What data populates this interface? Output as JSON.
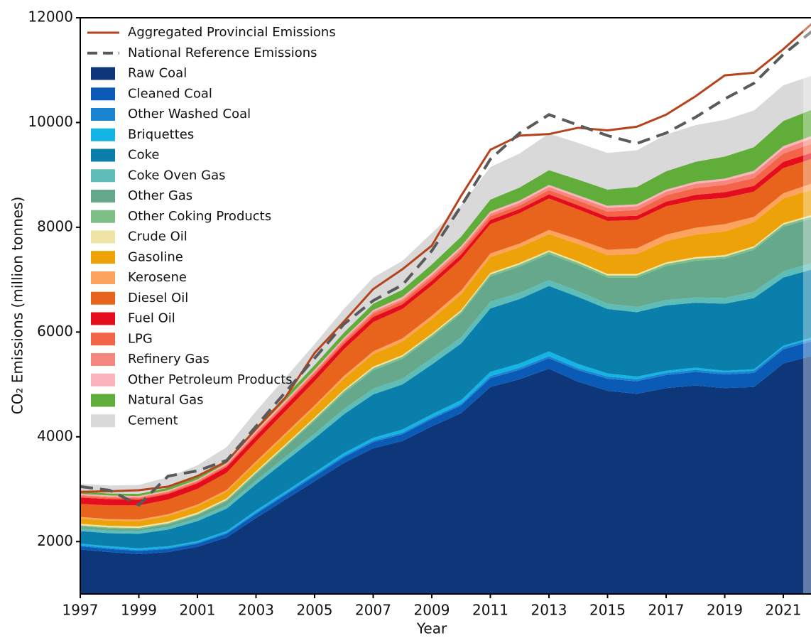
{
  "chart_data": {
    "type": "stacked_area",
    "x_label": "Year",
    "y_label": "CO₂ Emissions (million tonnes)",
    "x": [
      1997,
      1998,
      1999,
      2000,
      2001,
      2002,
      2003,
      2004,
      2005,
      2006,
      2007,
      2008,
      2009,
      2010,
      2011,
      2012,
      2013,
      2014,
      2015,
      2016,
      2017,
      2018,
      2019,
      2020,
      2021,
      2022
    ],
    "xlim": [
      1997,
      2022
    ],
    "xticks": [
      1997,
      1999,
      2001,
      2003,
      2005,
      2007,
      2009,
      2011,
      2013,
      2015,
      2017,
      2019,
      2021
    ],
    "ylim": [
      1000,
      12000
    ],
    "yticks": [
      2000,
      4000,
      6000,
      8000,
      10000,
      12000
    ],
    "lines": [
      {
        "name": "Aggregated Provincial Emissions",
        "color": "#b5431b",
        "dashed": false,
        "values": [
          2950,
          2960,
          2980,
          3050,
          3250,
          3530,
          4150,
          4750,
          5600,
          6200,
          6820,
          7200,
          7650,
          8600,
          9480,
          9750,
          9780,
          9900,
          9850,
          9920,
          10150,
          10500,
          10900,
          10950,
          11400,
          11900
        ]
      },
      {
        "name": "National Reference Emissions",
        "color": "#5a5a5a",
        "dashed": true,
        "values": [
          3050,
          2980,
          2700,
          3250,
          3350,
          3550,
          4200,
          4850,
          5500,
          6150,
          6600,
          6900,
          7550,
          8400,
          9300,
          9800,
          10150,
          9950,
          9750,
          9600,
          9800,
          10100,
          10450,
          10750,
          11300,
          11750
        ]
      }
    ],
    "series": [
      {
        "name": "Raw Coal",
        "color": "#0d3778",
        "values": [
          1850,
          1800,
          1760,
          1800,
          1900,
          2080,
          2450,
          2800,
          3150,
          3500,
          3780,
          3920,
          4200,
          4450,
          4950,
          5100,
          5300,
          5050,
          4880,
          4820,
          4930,
          4980,
          4930,
          4950,
          5400,
          5550
        ]
      },
      {
        "name": "Cleaned Coal",
        "color": "#0a5bb5",
        "values": [
          60,
          60,
          60,
          60,
          60,
          70,
          80,
          90,
          100,
          110,
          120,
          130,
          140,
          150,
          170,
          180,
          200,
          220,
          230,
          240,
          250,
          260,
          260,
          270,
          270,
          280
        ]
      },
      {
        "name": "Other Washed Coal",
        "color": "#1a84d0",
        "values": [
          20,
          20,
          20,
          20,
          20,
          20,
          25,
          25,
          30,
          30,
          30,
          30,
          30,
          30,
          40,
          40,
          40,
          40,
          40,
          40,
          40,
          40,
          40,
          40,
          40,
          40
        ]
      },
      {
        "name": "Briquettes",
        "color": "#13b4e6",
        "values": [
          30,
          30,
          30,
          30,
          30,
          30,
          40,
          40,
          40,
          50,
          50,
          60,
          60,
          70,
          80,
          80,
          90,
          80,
          60,
          50,
          40,
          40,
          30,
          30,
          30,
          30
        ]
      },
      {
        "name": "Coke",
        "color": "#0a7fab",
        "values": [
          240,
          250,
          280,
          320,
          380,
          430,
          500,
          580,
          650,
          740,
          830,
          860,
          950,
          1080,
          1210,
          1230,
          1250,
          1280,
          1230,
          1230,
          1250,
          1240,
          1280,
          1360,
          1300,
          1300
        ]
      },
      {
        "name": "Coke Oven Gas",
        "color": "#5fbdb8",
        "values": [
          50,
          50,
          50,
          50,
          55,
          60,
          70,
          80,
          90,
          100,
          110,
          110,
          120,
          120,
          130,
          120,
          110,
          110,
          100,
          100,
          100,
          100,
          110,
          120,
          120,
          120
        ]
      },
      {
        "name": "Other Gas",
        "color": "#66a88c",
        "values": [
          40,
          40,
          40,
          50,
          60,
          80,
          120,
          180,
          250,
          300,
          350,
          380,
          400,
          450,
          480,
          500,
          500,
          500,
          500,
          560,
          650,
          700,
          750,
          800,
          850,
          850
        ]
      },
      {
        "name": "Other Coking Products",
        "color": "#7dbf87",
        "values": [
          20,
          20,
          20,
          20,
          20,
          25,
          30,
          30,
          30,
          40,
          40,
          40,
          40,
          40,
          40,
          40,
          40,
          40,
          40,
          40,
          40,
          40,
          40,
          40,
          40,
          40
        ]
      },
      {
        "name": "Crude Oil",
        "color": "#efe3a6",
        "values": [
          30,
          30,
          30,
          30,
          30,
          30,
          30,
          30,
          30,
          30,
          30,
          30,
          30,
          30,
          30,
          30,
          30,
          30,
          30,
          30,
          30,
          30,
          30,
          30,
          30,
          30
        ]
      },
      {
        "name": "Gasoline",
        "color": "#eda20a",
        "values": [
          100,
          100,
          100,
          110,
          120,
          130,
          150,
          170,
          190,
          210,
          240,
          260,
          280,
          300,
          300,
          300,
          310,
          330,
          360,
          380,
          410,
          430,
          450,
          460,
          470,
          480
        ]
      },
      {
        "name": "Kerosene",
        "color": "#fca35f",
        "values": [
          30,
          30,
          30,
          30,
          30,
          30,
          35,
          40,
          40,
          50,
          50,
          60,
          60,
          70,
          70,
          70,
          80,
          90,
          100,
          110,
          120,
          130,
          140,
          100,
          100,
          120
        ]
      },
      {
        "name": "Diesel Oil",
        "color": "#e8641c",
        "values": [
          250,
          260,
          270,
          280,
          300,
          330,
          380,
          420,
          460,
          510,
          560,
          560,
          580,
          600,
          560,
          580,
          600,
          570,
          550,
          540,
          540,
          530,
          500,
          480,
          480,
          470
        ]
      },
      {
        "name": "Fuel Oil",
        "color": "#e30d1d",
        "values": [
          120,
          120,
          110,
          110,
          110,
          110,
          110,
          110,
          110,
          100,
          100,
          90,
          90,
          90,
          80,
          80,
          80,
          80,
          80,
          80,
          90,
          100,
          110,
          110,
          120,
          120
        ]
      },
      {
        "name": "LPG",
        "color": "#f46449",
        "values": [
          30,
          30,
          30,
          30,
          30,
          30,
          40,
          40,
          50,
          50,
          60,
          60,
          60,
          70,
          70,
          70,
          80,
          90,
          100,
          110,
          120,
          130,
          140,
          150,
          160,
          170
        ]
      },
      {
        "name": "Refinery Gas",
        "color": "#f5877f",
        "values": [
          20,
          20,
          20,
          20,
          20,
          20,
          30,
          30,
          30,
          40,
          40,
          40,
          50,
          50,
          50,
          50,
          60,
          60,
          70,
          70,
          70,
          80,
          80,
          90,
          90,
          100
        ]
      },
      {
        "name": "Other Petroleum Products",
        "color": "#fbb4bb",
        "values": [
          20,
          20,
          20,
          20,
          20,
          20,
          30,
          30,
          30,
          30,
          30,
          40,
          40,
          40,
          40,
          40,
          40,
          40,
          40,
          40,
          40,
          40,
          40,
          50,
          50,
          50
        ]
      },
      {
        "name": "Natural Gas",
        "color": "#60ad3a",
        "values": [
          40,
          40,
          40,
          50,
          50,
          60,
          70,
          80,
          90,
          100,
          120,
          140,
          160,
          180,
          230,
          250,
          280,
          300,
          310,
          330,
          350,
          380,
          420,
          450,
          480,
          500
        ]
      },
      {
        "name": "Cement",
        "color": "#d9d9d9",
        "values": [
          150,
          150,
          170,
          200,
          220,
          250,
          300,
          350,
          400,
          450,
          500,
          550,
          600,
          600,
          620,
          650,
          700,
          700,
          700,
          700,
          700,
          700,
          700,
          700,
          680,
          650
        ]
      }
    ]
  }
}
